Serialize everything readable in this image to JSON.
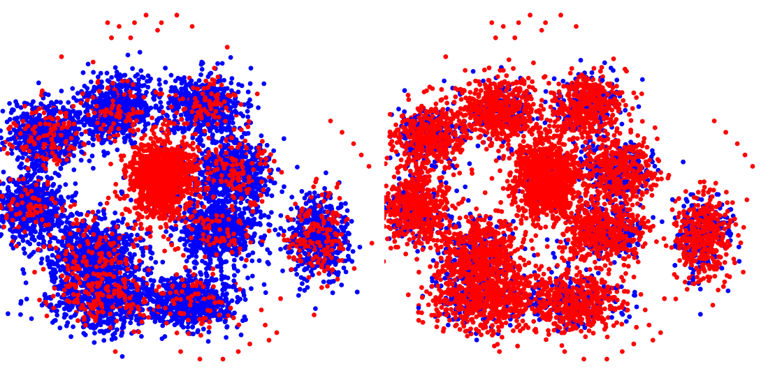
{
  "chart_data": [
    {
      "type": "scatter",
      "title": "",
      "xlabel": "",
      "ylabel": "",
      "axes_visible": false,
      "grid": false,
      "legend": "none",
      "xlim": [
        0,
        1
      ],
      "ylim": [
        0,
        1
      ],
      "front_series": "red",
      "series": [
        {
          "color": "#0000ff"
        },
        {
          "color": "#ff0000"
        }
      ],
      "clusters": [
        {
          "center": [
            0.3,
            0.29
          ],
          "spread": [
            0.08,
            0.07
          ],
          "count": 750,
          "red_fraction": 0.15
        },
        {
          "center": [
            0.12,
            0.36
          ],
          "spread": [
            0.08,
            0.07
          ],
          "count": 700,
          "red_fraction": 0.18
        },
        {
          "center": [
            0.53,
            0.28
          ],
          "spread": [
            0.08,
            0.07
          ],
          "count": 650,
          "red_fraction": 0.18
        },
        {
          "center": [
            0.61,
            0.45
          ],
          "spread": [
            0.08,
            0.07
          ],
          "count": 700,
          "red_fraction": 0.22
        },
        {
          "center": [
            0.08,
            0.55
          ],
          "spread": [
            0.07,
            0.07
          ],
          "count": 700,
          "red_fraction": 0.15
        },
        {
          "center": [
            0.25,
            0.67
          ],
          "spread": [
            0.09,
            0.08
          ],
          "count": 800,
          "red_fraction": 0.18
        },
        {
          "center": [
            0.57,
            0.61
          ],
          "spread": [
            0.09,
            0.07
          ],
          "count": 750,
          "red_fraction": 0.12
        },
        {
          "center": [
            0.26,
            0.79
          ],
          "spread": [
            0.11,
            0.07
          ],
          "count": 850,
          "red_fraction": 0.2
        },
        {
          "center": [
            0.5,
            0.8
          ],
          "spread": [
            0.1,
            0.06
          ],
          "count": 700,
          "red_fraction": 0.15
        },
        {
          "center": [
            0.83,
            0.63
          ],
          "spread": [
            0.06,
            0.09
          ],
          "count": 650,
          "red_fraction": 0.3
        },
        {
          "center": [
            0.42,
            0.47
          ],
          "spread": [
            0.07,
            0.08
          ],
          "count": 1200,
          "red_fraction": 0.97
        }
      ],
      "outliers": [
        [
          0.28,
          0.06
        ],
        [
          0.31,
          0.07
        ],
        [
          0.35,
          0.06
        ],
        [
          0.38,
          0.04
        ],
        [
          0.42,
          0.06
        ],
        [
          0.46,
          0.04
        ],
        [
          0.5,
          0.07
        ],
        [
          0.34,
          0.1
        ],
        [
          0.29,
          0.1
        ],
        [
          0.41,
          0.08
        ],
        [
          0.16,
          0.15
        ],
        [
          0.11,
          0.24
        ],
        [
          0.86,
          0.32
        ],
        [
          0.89,
          0.35
        ],
        [
          0.92,
          0.38
        ],
        [
          0.94,
          0.41
        ],
        [
          0.96,
          0.44
        ],
        [
          0.1,
          0.66
        ],
        [
          0.09,
          0.72
        ],
        [
          0.68,
          0.82
        ],
        [
          0.69,
          0.86
        ],
        [
          0.7,
          0.9
        ],
        [
          0.65,
          0.91
        ],
        [
          0.62,
          0.93
        ],
        [
          0.58,
          0.95
        ],
        [
          0.52,
          0.95
        ],
        [
          0.47,
          0.93
        ],
        [
          0.3,
          0.93
        ],
        [
          0.72,
          0.88
        ],
        [
          0.73,
          0.79
        ]
      ]
    },
    {
      "type": "scatter",
      "title": "",
      "xlabel": "",
      "ylabel": "",
      "axes_visible": false,
      "grid": false,
      "legend": "none",
      "xlim": [
        0,
        1
      ],
      "ylim": [
        0,
        1
      ],
      "front_series": "red",
      "series": [
        {
          "color": "#0000ff"
        },
        {
          "color": "#ff0000"
        }
      ],
      "clusters": [
        {
          "center": [
            0.3,
            0.29
          ],
          "spread": [
            0.08,
            0.07
          ],
          "count": 650,
          "red_fraction": 0.8
        },
        {
          "center": [
            0.12,
            0.36
          ],
          "spread": [
            0.08,
            0.07
          ],
          "count": 600,
          "red_fraction": 0.75
        },
        {
          "center": [
            0.53,
            0.28
          ],
          "spread": [
            0.08,
            0.07
          ],
          "count": 600,
          "red_fraction": 0.75
        },
        {
          "center": [
            0.61,
            0.45
          ],
          "spread": [
            0.08,
            0.07
          ],
          "count": 600,
          "red_fraction": 0.7
        },
        {
          "center": [
            0.08,
            0.55
          ],
          "spread": [
            0.07,
            0.07
          ],
          "count": 650,
          "red_fraction": 0.8
        },
        {
          "center": [
            0.25,
            0.67
          ],
          "spread": [
            0.09,
            0.08
          ],
          "count": 750,
          "red_fraction": 0.78
        },
        {
          "center": [
            0.57,
            0.61
          ],
          "spread": [
            0.09,
            0.07
          ],
          "count": 650,
          "red_fraction": 0.75
        },
        {
          "center": [
            0.26,
            0.79
          ],
          "spread": [
            0.11,
            0.07
          ],
          "count": 800,
          "red_fraction": 0.78
        },
        {
          "center": [
            0.5,
            0.8
          ],
          "spread": [
            0.1,
            0.06
          ],
          "count": 650,
          "red_fraction": 0.72
        },
        {
          "center": [
            0.83,
            0.63
          ],
          "spread": [
            0.06,
            0.09
          ],
          "count": 600,
          "red_fraction": 0.7
        },
        {
          "center": [
            0.42,
            0.47
          ],
          "spread": [
            0.07,
            0.08
          ],
          "count": 1200,
          "red_fraction": 0.97
        }
      ],
      "outliers": [
        [
          0.28,
          0.06
        ],
        [
          0.31,
          0.07
        ],
        [
          0.35,
          0.06
        ],
        [
          0.38,
          0.04
        ],
        [
          0.42,
          0.06
        ],
        [
          0.46,
          0.04
        ],
        [
          0.5,
          0.07
        ],
        [
          0.34,
          0.1
        ],
        [
          0.29,
          0.1
        ],
        [
          0.41,
          0.08
        ],
        [
          0.16,
          0.15
        ],
        [
          0.11,
          0.24
        ],
        [
          0.86,
          0.32
        ],
        [
          0.89,
          0.35
        ],
        [
          0.92,
          0.38
        ],
        [
          0.94,
          0.41
        ],
        [
          0.96,
          0.44
        ],
        [
          0.1,
          0.66
        ],
        [
          0.09,
          0.72
        ],
        [
          0.68,
          0.82
        ],
        [
          0.69,
          0.86
        ],
        [
          0.7,
          0.9
        ],
        [
          0.65,
          0.91
        ],
        [
          0.62,
          0.93
        ],
        [
          0.58,
          0.95
        ],
        [
          0.52,
          0.95
        ],
        [
          0.47,
          0.93
        ],
        [
          0.3,
          0.93
        ],
        [
          0.72,
          0.88
        ],
        [
          0.73,
          0.79
        ]
      ]
    }
  ]
}
